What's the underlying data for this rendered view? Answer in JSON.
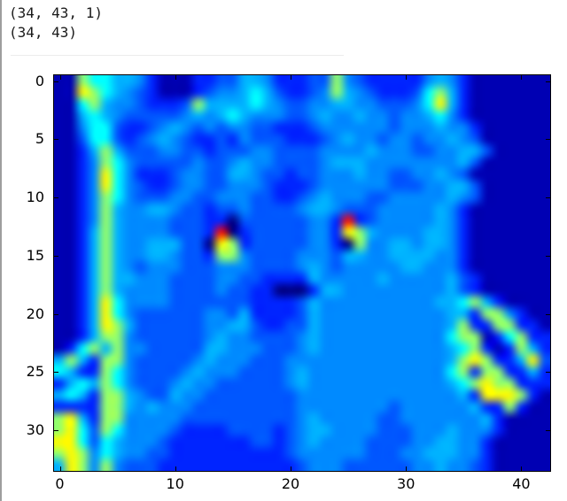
{
  "console_output": {
    "line1": "(34, 43, 1)",
    "line2": "(34, 43)"
  },
  "chart_data": {
    "type": "heatmap",
    "title": "",
    "xlabel": "",
    "ylabel": "",
    "colormap": "jet",
    "grid_shape": [
      34,
      43
    ],
    "x_ticks": [
      0,
      10,
      20,
      30,
      40
    ],
    "y_ticks": [
      0,
      5,
      10,
      15,
      20,
      25,
      30
    ],
    "x_range": [
      -0.5,
      42.5
    ],
    "y_range": [
      33.5,
      -0.5
    ],
    "legend": "none",
    "grid_lines": false,
    "level_values": [
      0.0,
      0.05,
      0.16,
      0.21,
      0.26,
      0.3,
      0.375,
      0.52,
      0.63,
      0.86
    ],
    "rows": [
      "1176655421112233554222337432222245421111111",
      "1187654321112344565322347543222367521111111",
      "1167544322237555565433445544333468521111111",
      "1156543333345456544433454454434456421111111",
      "1146632234543434433222344444434445442111111",
      "1136632345432232433322234544344344543111111",
      "1125753334433233344333344445444334455311111",
      "1124764333334334544333345554444444453111111",
      "1124864222344335543323344454433445431111111",
      "1124864322344334443222344444433344553111111",
      "1124764333443344433223454443344444543111111",
      "1124754455433233433334554333444445421111111",
      "1124754444333220333333442923444445421111111",
      "1125754444333290233333442875444455421111111",
      "1125754455533087233333442074455455421111111",
      "1125754455433277433334443554455554421111111",
      "1125754344433344433334543444445544421111111",
      "1125755444333344332222544444544444532111111",
      "1125754444333343322000255444444444532111111",
      "1125864444333333322223544444444445567521111",
      "1125864333333443522223544444444444552774211",
      "1125875333333445532233544444444444572277221",
      "1125774333333454433334544444444444677126722",
      "1267574433333554443334544444444444567212752",
      "5752774333334544433344444444444444578722583",
      "6522764333345444333345444444444444672772252",
      "2565764333454433333345444444444444567877222",
      "5652775433544333333334444444444444452888721",
      "2222775454443333333334444444434444445227211",
      "7852774444433333333334544444334444444521111",
      "7863764444322223333234554444333444544421111",
      "8863654443222222233234544443333445544211111",
      "7874654433222222222234444443334455544211111",
      "5874743332222222222223444333333445443211111"
    ]
  },
  "figure": {
    "plot_bg_value": "navy blue",
    "border_color": "#000000"
  },
  "colors": {
    "page_background": "#ffffff",
    "left_bar": "#9e9e9e",
    "separator": "#ececec",
    "console_text": "#1a1a1a",
    "axis_label_text": "#000000",
    "heatmap_background": "#0000b2"
  }
}
